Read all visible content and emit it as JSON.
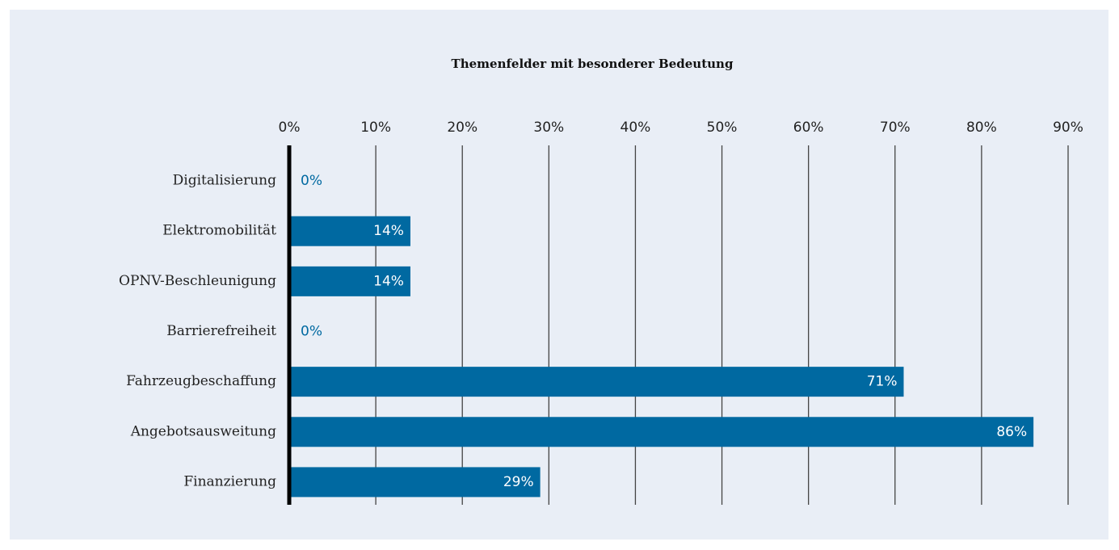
{
  "chart_data": {
    "type": "bar",
    "orientation": "horizontal",
    "title": "Themenfelder mit besonderer Bedeutung",
    "categories": [
      "Digitalisierung",
      "Elektromobilität",
      "OPNV-Beschleunigung",
      "Barrierefreiheit",
      "Fahrzeugbeschaffung",
      "Angebotsausweitung",
      "Finanzierung"
    ],
    "values": [
      0,
      14,
      14,
      0,
      71,
      86,
      29
    ],
    "value_labels": [
      "0%",
      "14%",
      "14%",
      "0%",
      "71%",
      "86%",
      "29%"
    ],
    "color": "#0069a1",
    "xlim": [
      0,
      90
    ],
    "xticks": [
      {
        "value": 0,
        "label": "0%"
      },
      {
        "value": 10,
        "label": "10%"
      },
      {
        "value": 20,
        "label": "20%"
      },
      {
        "value": 30,
        "label": "30%"
      },
      {
        "value": 40,
        "label": "40%"
      },
      {
        "value": 50,
        "label": "50%"
      },
      {
        "value": 60,
        "label": "60%"
      },
      {
        "value": 70,
        "label": "70%"
      },
      {
        "value": 80,
        "label": "80%"
      },
      {
        "value": 90,
        "label": "90%"
      }
    ],
    "grid": true
  }
}
